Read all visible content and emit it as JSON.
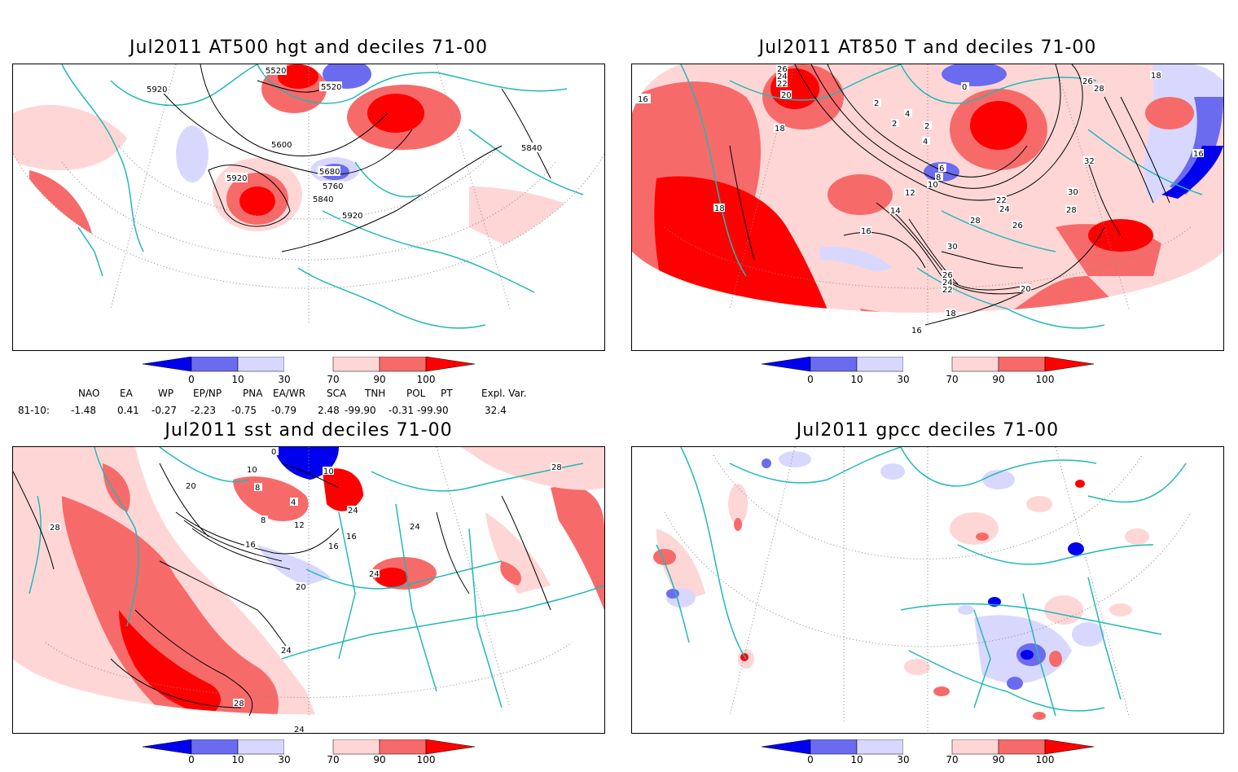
{
  "panels": {
    "hgt": {
      "title": "Jul2011 AT500 hgt and deciles 71-00",
      "contours": [
        "5520",
        "5920",
        "5520",
        "5600",
        "5840",
        "5920",
        "5680",
        "5760",
        "5840",
        "5920"
      ]
    },
    "t850": {
      "title": "Jul2011 AT850 T and deciles 71-00",
      "contours": [
        "16",
        "26",
        "24",
        "22",
        "20",
        "18",
        "0",
        "2",
        "4",
        "2",
        "2",
        "4",
        "26",
        "28",
        "18",
        "16",
        "6",
        "8",
        "10",
        "12",
        "14",
        "16",
        "18",
        "32",
        "30",
        "28",
        "22",
        "24",
        "28",
        "26",
        "30",
        "26",
        "24",
        "22",
        "20",
        "18",
        "16"
      ]
    },
    "sst": {
      "title": "Jul2011 sst and deciles 71-00",
      "contours": [
        "0",
        "10",
        "8",
        "10",
        "20",
        "28",
        "28",
        "12",
        "16",
        "8",
        "4",
        "16",
        "24",
        "16",
        "20",
        "24",
        "24",
        "24",
        "28",
        "24"
      ]
    },
    "gpcc": {
      "title": "Jul2011 gpcc deciles 71-00"
    }
  },
  "colorbar": {
    "ticks": [
      "0",
      "10",
      "30",
      "70",
      "90",
      "100"
    ],
    "colors": {
      "below_0": "#0000ee",
      "0_10": "#6b6bf0",
      "10_30": "#d8d8ff",
      "30_70": "#ffffff",
      "70_90": "#ffd6d6",
      "90_100": "#f76a6a",
      "above_100": "#ff0000"
    }
  },
  "indices": {
    "headers": [
      "NAO",
      "EA",
      "WP",
      "EP/NP",
      "PNA",
      "EA/WR",
      "SCA",
      "TNH",
      "POL",
      "PT",
      "Expl. Var."
    ],
    "row_label": "81-10:",
    "values": [
      "-1.48",
      "0.41",
      "-0.27",
      "-2.23",
      "-0.75",
      "-0.79",
      "2.48",
      "-99.90",
      "-0.31",
      "-99.90",
      "32.4"
    ]
  },
  "map_style": {
    "coast_color": "#22b8b8",
    "contour_color": "#000000",
    "grid_color": "#888888"
  }
}
